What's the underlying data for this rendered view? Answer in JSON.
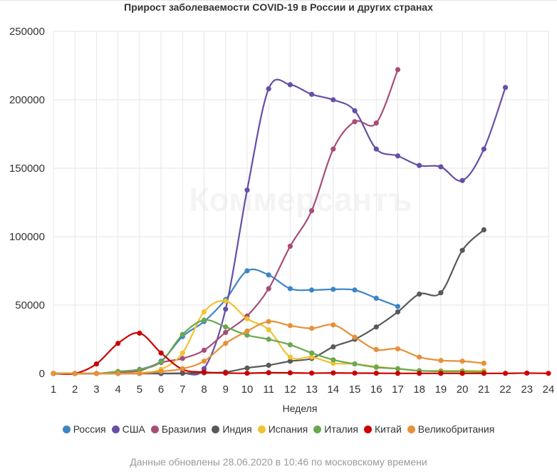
{
  "chart_data": {
    "type": "line",
    "title": "Прирост заболеваемости COVID-19 в России и других странах",
    "xlabel": "Неделя",
    "ylabel": "",
    "x": [
      1,
      2,
      3,
      4,
      5,
      6,
      7,
      8,
      9,
      10,
      11,
      12,
      13,
      14,
      15,
      16,
      17,
      18,
      19,
      20,
      21,
      22,
      23,
      24
    ],
    "ylim": [
      0,
      250000
    ],
    "yticks": [
      0,
      50000,
      100000,
      150000,
      200000,
      250000
    ],
    "grid": true,
    "legend_position": "bottom",
    "series": [
      {
        "name": "Россия",
        "color": "#3d85c6",
        "x": [
          1,
          2,
          3,
          4,
          5,
          6,
          7,
          8,
          9,
          10,
          11,
          12,
          13,
          14,
          15,
          16,
          17
        ],
        "values": [
          0,
          0,
          0,
          500,
          3000,
          9000,
          27000,
          38000,
          54000,
          75000,
          72000,
          62000,
          61000,
          61500,
          61000,
          55000,
          49000
        ]
      },
      {
        "name": "США",
        "color": "#674ea7",
        "x": [
          1,
          2,
          3,
          4,
          5,
          6,
          7,
          8,
          9,
          10,
          11,
          12,
          13,
          14,
          15,
          16,
          17,
          18,
          19,
          20,
          21,
          22
        ],
        "values": [
          0,
          0,
          0,
          0,
          0,
          0,
          200,
          3500,
          47000,
          134000,
          208000,
          211000,
          204000,
          200000,
          192000,
          164000,
          159000,
          152000,
          151000,
          141000,
          164000,
          209000
        ]
      },
      {
        "name": "Бразилия",
        "color": "#a64d79",
        "x": [
          1,
          2,
          3,
          4,
          5,
          6,
          7,
          8,
          9,
          10,
          11,
          12,
          13,
          14,
          15,
          16,
          17
        ],
        "values": [
          0,
          0,
          0,
          1000,
          2000,
          8000,
          11000,
          17000,
          30000,
          42000,
          62000,
          93000,
          119000,
          164000,
          184000,
          183000,
          222000
        ]
      },
      {
        "name": "Индия",
        "color": "#595959",
        "x": [
          1,
          2,
          3,
          4,
          5,
          6,
          7,
          8,
          9,
          10,
          11,
          12,
          13,
          14,
          15,
          16,
          17,
          18,
          19,
          20,
          21
        ],
        "values": [
          0,
          0,
          0,
          0,
          0,
          0,
          200,
          500,
          1000,
          4000,
          6000,
          9000,
          11000,
          19500,
          25000,
          34000,
          45000,
          58000,
          59000,
          90000,
          105000
        ]
      },
      {
        "name": "Испания",
        "color": "#f1c232",
        "x": [
          1,
          2,
          3,
          4,
          5,
          6,
          7,
          8,
          9,
          10,
          11,
          12,
          13,
          14,
          15,
          16,
          17,
          18,
          19,
          20,
          21
        ],
        "values": [
          0,
          0,
          0,
          0,
          500,
          3000,
          15000,
          45000,
          53000,
          40000,
          32000,
          12000,
          12000,
          7500,
          7000,
          5000,
          3500,
          2000,
          2000,
          2000,
          2000
        ]
      },
      {
        "name": "Италия",
        "color": "#6aa84f",
        "x": [
          1,
          2,
          3,
          4,
          5,
          6,
          7,
          8,
          9,
          10,
          11,
          12,
          13,
          14,
          15,
          16,
          17,
          18,
          19,
          20,
          21
        ],
        "values": [
          0,
          0,
          0,
          1500,
          3000,
          8500,
          28500,
          39000,
          34000,
          28000,
          25000,
          21000,
          15000,
          10000,
          7000,
          4500,
          3500,
          2000,
          1500,
          1500,
          1000
        ]
      },
      {
        "name": "Китай",
        "color": "#cc0000",
        "x": [
          1,
          2,
          3,
          4,
          5,
          6,
          7,
          8,
          9,
          10,
          11,
          12,
          13,
          14,
          15,
          16,
          17,
          18,
          19,
          20,
          21,
          22,
          23,
          24
        ],
        "values": [
          0,
          0,
          7000,
          22000,
          29500,
          15000,
          3000,
          1000,
          300,
          200,
          600,
          500,
          300,
          400,
          300,
          200,
          100,
          100,
          100,
          100,
          100,
          100,
          300,
          100
        ]
      },
      {
        "name": "Великобритания",
        "color": "#e69138",
        "x": [
          1,
          2,
          3,
          4,
          5,
          6,
          7,
          8,
          9,
          10,
          11,
          12,
          13,
          14,
          15,
          16,
          17,
          18,
          19,
          20,
          21
        ],
        "values": [
          0,
          0,
          0,
          0,
          0,
          1500,
          3500,
          9000,
          22000,
          31000,
          38000,
          35000,
          33000,
          35500,
          26500,
          17500,
          18000,
          12000,
          9500,
          9000,
          7500
        ]
      }
    ]
  },
  "watermark": "Коммерсантъ",
  "footnote": "Данные обновлены 28.06.2020 в 10:46 по московскому времени"
}
